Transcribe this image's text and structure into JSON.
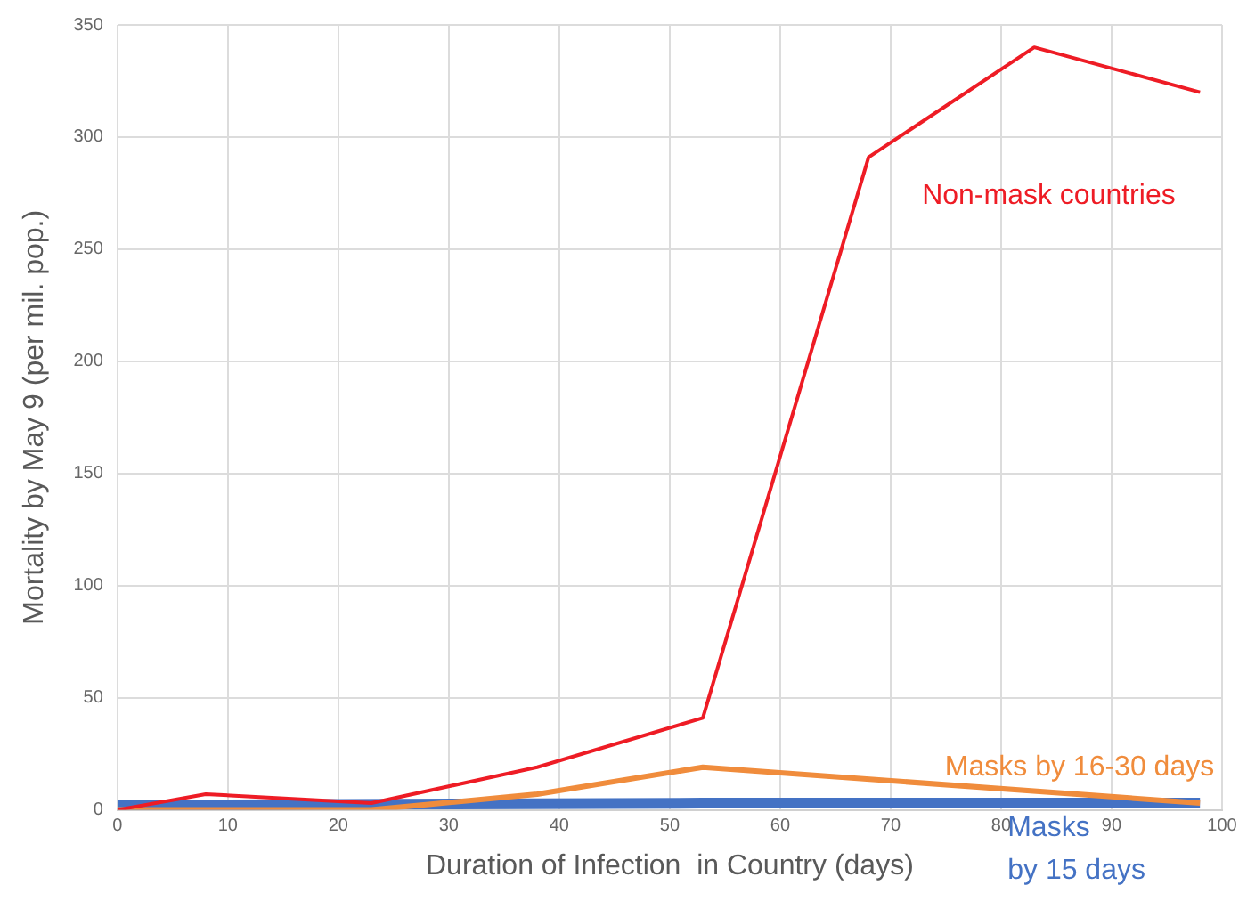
{
  "chart_data": {
    "type": "line",
    "xlabel": "Duration of Infection  in Country (days)",
    "ylabel": "Mortality by May 9 (per mil. pop.)",
    "xlim": [
      0,
      100
    ],
    "xticks": [
      0,
      10,
      20,
      30,
      40,
      50,
      60,
      70,
      80,
      90,
      100
    ],
    "ylim": [
      0,
      350
    ],
    "yticks": [
      0,
      50,
      100,
      150,
      200,
      250,
      300,
      350
    ],
    "grid": true,
    "legend": false,
    "marker": "none",
    "line_style": "solid",
    "series": [
      {
        "name": "Non-mask countries",
        "color": "#ee1c25",
        "x": [
          0,
          8,
          23,
          38,
          53,
          68,
          83,
          98
        ],
        "values": [
          0,
          7,
          3,
          19,
          41,
          291,
          340,
          320
        ]
      },
      {
        "name": "Masks by 16-30 days",
        "color": "#f08c3c",
        "x": [
          0,
          23,
          38,
          53,
          98
        ],
        "values": [
          0,
          0,
          7,
          19,
          3
        ]
      },
      {
        "name": "Masks by 15 days",
        "color": "#4472c4",
        "x": [
          0,
          53,
          98
        ],
        "values": [
          2,
          3,
          3
        ]
      }
    ]
  }
}
